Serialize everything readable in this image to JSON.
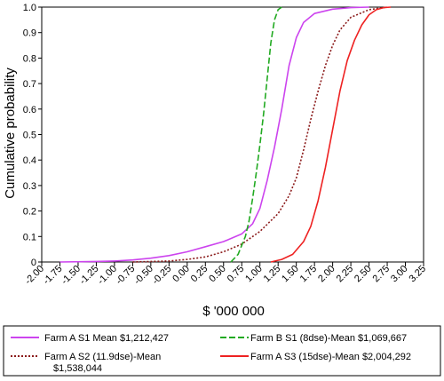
{
  "chart_data": {
    "type": "line",
    "title": "",
    "xlabel": "$ '000 000",
    "ylabel": "Cumulative probability",
    "xlim": [
      -2.0,
      3.25
    ],
    "ylim": [
      0,
      1.0
    ],
    "x_ticks": [
      "-2.00",
      "-1.75",
      "-1.50",
      "-1.25",
      "-1.00",
      "-0.75",
      "-0.50",
      "-0.25",
      "0.00",
      "0.25",
      "0.50",
      "0.75",
      "1.00",
      "1.25",
      "1.50",
      "1.75",
      "2.00",
      "2.25",
      "2.50",
      "2.75",
      "3.00",
      "3.25"
    ],
    "y_ticks": [
      "0",
      "0.1",
      "0.2",
      "0.3",
      "0.4",
      "0.5",
      "0.6",
      "0.7",
      "0.8",
      "0.9",
      "1.0"
    ],
    "grid": false,
    "legend_position": "bottom",
    "series": [
      {
        "name": "Farm A S1 Mean $1,212,427",
        "color": "#cc44ee",
        "style": "solid",
        "x": [
          -1.75,
          -1.25,
          -1.0,
          -0.75,
          -0.5,
          -0.25,
          0.0,
          0.25,
          0.5,
          0.75,
          0.9,
          1.0,
          1.1,
          1.2,
          1.3,
          1.4,
          1.5,
          1.6,
          1.75,
          2.0,
          2.25,
          2.5
        ],
        "y": [
          0.0,
          0.002,
          0.004,
          0.008,
          0.015,
          0.025,
          0.04,
          0.06,
          0.08,
          0.11,
          0.15,
          0.21,
          0.32,
          0.45,
          0.6,
          0.77,
          0.88,
          0.94,
          0.975,
          0.992,
          0.998,
          1.0
        ]
      },
      {
        "name": "Farm A S2 (11.9dse)-Mean $1,538,044",
        "color": "#8b1a1a",
        "style": "dotted",
        "x": [
          -0.75,
          -0.25,
          0.0,
          0.25,
          0.5,
          0.75,
          1.0,
          1.25,
          1.4,
          1.5,
          1.6,
          1.7,
          1.8,
          1.9,
          2.0,
          2.1,
          2.25,
          2.5,
          2.75
        ],
        "y": [
          0.0,
          0.004,
          0.01,
          0.02,
          0.04,
          0.07,
          0.12,
          0.19,
          0.26,
          0.33,
          0.44,
          0.56,
          0.67,
          0.77,
          0.85,
          0.91,
          0.96,
          0.99,
          1.0
        ]
      },
      {
        "name": "Farm B S1 (8dse)-Mean $1,069,667",
        "color": "#22aa22",
        "style": "dashed",
        "x": [
          0.6,
          0.7,
          0.8,
          0.85,
          0.9,
          0.95,
          1.0,
          1.05,
          1.1,
          1.15,
          1.2,
          1.25,
          1.3
        ],
        "y": [
          0.0,
          0.03,
          0.1,
          0.16,
          0.25,
          0.35,
          0.46,
          0.58,
          0.72,
          0.86,
          0.95,
          0.99,
          1.0
        ]
      },
      {
        "name": "Farm A S3 (15dse)-Mean $2,004,292",
        "color": "#ee2222",
        "style": "solid",
        "x": [
          1.15,
          1.3,
          1.45,
          1.6,
          1.7,
          1.8,
          1.9,
          2.0,
          2.1,
          2.2,
          2.3,
          2.4,
          2.5,
          2.6,
          2.7,
          2.8
        ],
        "y": [
          0.0,
          0.01,
          0.03,
          0.08,
          0.14,
          0.24,
          0.37,
          0.52,
          0.67,
          0.79,
          0.87,
          0.93,
          0.97,
          0.99,
          0.998,
          1.0
        ]
      }
    ],
    "legend": [
      {
        "label_lines": [
          "Farm A S1 Mean $1,212,427"
        ],
        "color": "#cc44ee",
        "style": "solid"
      },
      {
        "label_lines": [
          "Farm B S1 (8dse)-Mean $1,069,667"
        ],
        "color": "#22aa22",
        "style": "dashed"
      },
      {
        "label_lines": [
          "Farm A S2 (11.9dse)-Mean",
          "$1,538,044"
        ],
        "color": "#8b1a1a",
        "style": "dotted"
      },
      {
        "label_lines": [
          "Farm A S3 (15dse)-Mean $2,004,292"
        ],
        "color": "#ee2222",
        "style": "solid"
      }
    ]
  }
}
